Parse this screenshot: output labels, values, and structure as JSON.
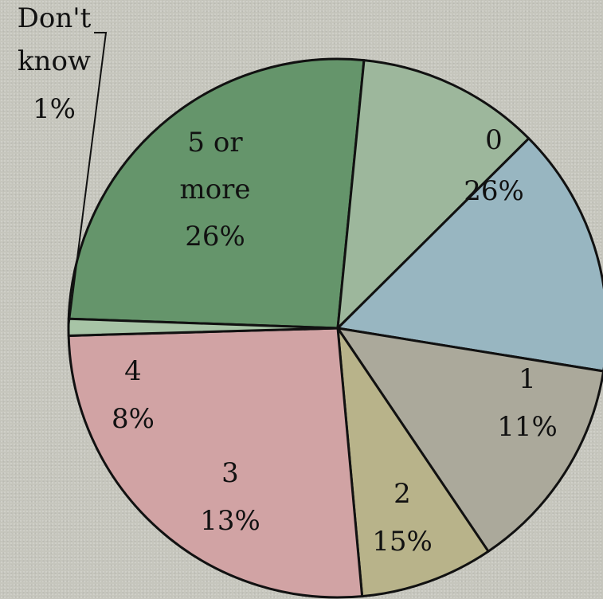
{
  "chart_data": {
    "type": "pie",
    "slices": [
      {
        "category": "0",
        "percent_label": "26%",
        "value": 26,
        "color": "#65956b"
      },
      {
        "category": "1",
        "percent_label": "11%",
        "value": 11,
        "color": "#9db79c"
      },
      {
        "category": "2",
        "percent_label": "15%",
        "value": 15,
        "color": "#98b6c1"
      },
      {
        "category": "3",
        "percent_label": "13%",
        "value": 13,
        "color": "#aba99b"
      },
      {
        "category": "4",
        "percent_label": "8%",
        "value": 8,
        "color": "#b8b38a"
      },
      {
        "category": "5 or more",
        "percent_label": "26%",
        "value": 26,
        "color": "#d1a3a4"
      },
      {
        "category": "Don't know",
        "percent_label": "1%",
        "value": 1,
        "color": "#a7c4a6"
      }
    ],
    "legend": "none",
    "title": ""
  }
}
